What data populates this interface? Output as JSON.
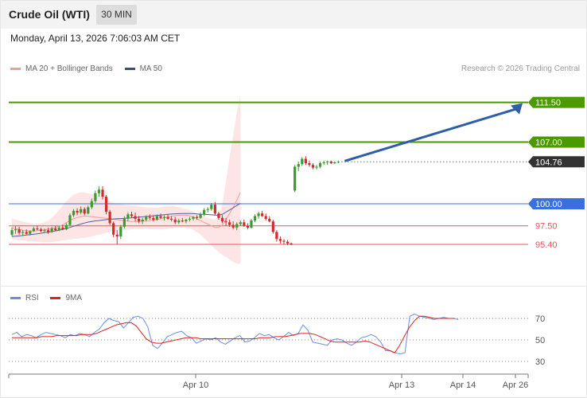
{
  "header": {
    "title": "Crude Oil (WTI)",
    "timeframe": "30 MIN"
  },
  "datetime": "Monday, April 13, 2026 7:06:03 AM CET",
  "legend": {
    "item1": "MA 20 + Bollinger Bands",
    "item2": "MA 50"
  },
  "credit": "Research © 2026 Trading Central",
  "colors": {
    "up": "#3b9b2f",
    "down": "#d22b2b",
    "resistance": "#4a9a00",
    "pivot": "#3b6fe0",
    "support": "#e05a5a",
    "ma20": "#f39a9a",
    "ma50": "#4a5fa0",
    "band": "#fde0e0",
    "arrow": "#2d5ea7",
    "rsi": "#6a8fe0",
    "rsi_ma": "#e02020"
  },
  "chart_data": [
    {
      "type": "candlestick",
      "indicators": [
        "MA 20 + Bollinger Bands",
        "MA 50"
      ],
      "price": {
        "last": 104.76,
        "approx_range": [
          94.5,
          112.5
        ]
      },
      "candles": [
        {
          "o": 96.5,
          "h": 97.3,
          "l": 96.3,
          "c": 97.0
        },
        {
          "o": 97.0,
          "h": 97.5,
          "l": 96.6,
          "c": 97.1
        },
        {
          "o": 97.1,
          "h": 97.4,
          "l": 96.5,
          "c": 96.7
        },
        {
          "o": 96.7,
          "h": 97.0,
          "l": 96.4,
          "c": 96.8
        },
        {
          "o": 96.8,
          "h": 97.1,
          "l": 96.5,
          "c": 96.6
        },
        {
          "o": 96.6,
          "h": 97.0,
          "l": 96.4,
          "c": 96.9
        },
        {
          "o": 96.9,
          "h": 97.4,
          "l": 96.8,
          "c": 97.2
        },
        {
          "o": 97.2,
          "h": 97.5,
          "l": 97.0,
          "c": 97.1
        },
        {
          "o": 97.1,
          "h": 97.3,
          "l": 96.8,
          "c": 96.9
        },
        {
          "o": 96.9,
          "h": 97.2,
          "l": 96.7,
          "c": 97.0
        },
        {
          "o": 97.0,
          "h": 97.3,
          "l": 96.6,
          "c": 96.8
        },
        {
          "o": 96.8,
          "h": 97.4,
          "l": 96.7,
          "c": 97.2
        },
        {
          "o": 97.2,
          "h": 97.5,
          "l": 96.9,
          "c": 97.0
        },
        {
          "o": 97.0,
          "h": 97.5,
          "l": 96.9,
          "c": 97.3
        },
        {
          "o": 97.3,
          "h": 97.6,
          "l": 97.0,
          "c": 97.1
        },
        {
          "o": 97.1,
          "h": 97.8,
          "l": 97.0,
          "c": 97.6
        },
        {
          "o": 97.6,
          "h": 98.9,
          "l": 97.5,
          "c": 98.7
        },
        {
          "o": 98.7,
          "h": 99.4,
          "l": 98.5,
          "c": 99.2
        },
        {
          "o": 99.2,
          "h": 99.5,
          "l": 98.7,
          "c": 99.0
        },
        {
          "o": 99.0,
          "h": 99.7,
          "l": 98.8,
          "c": 99.4
        },
        {
          "o": 99.4,
          "h": 99.6,
          "l": 98.7,
          "c": 98.9
        },
        {
          "o": 98.9,
          "h": 99.8,
          "l": 98.8,
          "c": 99.6
        },
        {
          "o": 99.6,
          "h": 100.6,
          "l": 99.4,
          "c": 100.3
        },
        {
          "o": 100.3,
          "h": 101.5,
          "l": 100.1,
          "c": 101.2
        },
        {
          "o": 101.2,
          "h": 102.0,
          "l": 100.8,
          "c": 101.6
        },
        {
          "o": 101.6,
          "h": 102.0,
          "l": 100.5,
          "c": 100.8
        },
        {
          "o": 100.8,
          "h": 101.0,
          "l": 98.8,
          "c": 99.1
        },
        {
          "o": 99.1,
          "h": 99.3,
          "l": 97.6,
          "c": 97.8
        },
        {
          "o": 97.8,
          "h": 98.0,
          "l": 96.2,
          "c": 96.5
        },
        {
          "o": 96.5,
          "h": 97.0,
          "l": 95.4,
          "c": 96.3
        },
        {
          "o": 96.3,
          "h": 97.6,
          "l": 96.0,
          "c": 97.4
        },
        {
          "o": 97.4,
          "h": 98.6,
          "l": 97.2,
          "c": 98.3
        },
        {
          "o": 98.3,
          "h": 99.0,
          "l": 98.0,
          "c": 98.8
        },
        {
          "o": 98.8,
          "h": 99.1,
          "l": 98.4,
          "c": 98.6
        },
        {
          "o": 98.6,
          "h": 99.0,
          "l": 98.0,
          "c": 98.3
        },
        {
          "o": 98.3,
          "h": 98.6,
          "l": 97.8,
          "c": 98.0
        },
        {
          "o": 98.0,
          "h": 98.4,
          "l": 97.7,
          "c": 98.2
        },
        {
          "o": 98.2,
          "h": 98.7,
          "l": 98.0,
          "c": 98.5
        },
        {
          "o": 98.5,
          "h": 98.8,
          "l": 98.2,
          "c": 98.4
        },
        {
          "o": 98.4,
          "h": 98.7,
          "l": 98.0,
          "c": 98.2
        },
        {
          "o": 98.2,
          "h": 98.8,
          "l": 98.1,
          "c": 98.6
        },
        {
          "o": 98.6,
          "h": 98.9,
          "l": 98.3,
          "c": 98.4
        },
        {
          "o": 98.4,
          "h": 98.7,
          "l": 98.1,
          "c": 98.5
        },
        {
          "o": 98.5,
          "h": 98.8,
          "l": 98.2,
          "c": 98.3
        },
        {
          "o": 98.3,
          "h": 98.6,
          "l": 98.0,
          "c": 98.2
        },
        {
          "o": 98.2,
          "h": 98.5,
          "l": 97.7,
          "c": 97.9
        },
        {
          "o": 97.9,
          "h": 98.3,
          "l": 97.7,
          "c": 98.1
        },
        {
          "o": 98.1,
          "h": 98.4,
          "l": 97.9,
          "c": 98.0
        },
        {
          "o": 98.0,
          "h": 98.3,
          "l": 97.8,
          "c": 98.2
        },
        {
          "o": 98.2,
          "h": 98.5,
          "l": 98.0,
          "c": 98.3
        },
        {
          "o": 98.3,
          "h": 98.6,
          "l": 98.1,
          "c": 98.5
        },
        {
          "o": 98.5,
          "h": 98.7,
          "l": 98.2,
          "c": 98.4
        },
        {
          "o": 98.4,
          "h": 99.0,
          "l": 98.3,
          "c": 98.8
        },
        {
          "o": 98.8,
          "h": 99.5,
          "l": 98.6,
          "c": 99.3
        },
        {
          "o": 99.3,
          "h": 99.6,
          "l": 99.0,
          "c": 99.4
        },
        {
          "o": 99.4,
          "h": 100.1,
          "l": 99.2,
          "c": 99.9
        },
        {
          "o": 99.9,
          "h": 100.2,
          "l": 98.7,
          "c": 98.9
        },
        {
          "o": 98.9,
          "h": 99.1,
          "l": 98.2,
          "c": 98.4
        },
        {
          "o": 98.4,
          "h": 98.7,
          "l": 97.8,
          "c": 98.0
        },
        {
          "o": 98.0,
          "h": 98.4,
          "l": 97.5,
          "c": 97.9
        },
        {
          "o": 97.9,
          "h": 98.2,
          "l": 97.4,
          "c": 97.6
        },
        {
          "o": 97.6,
          "h": 98.0,
          "l": 97.1,
          "c": 97.3
        },
        {
          "o": 97.3,
          "h": 97.9,
          "l": 97.0,
          "c": 97.7
        },
        {
          "o": 97.7,
          "h": 98.1,
          "l": 97.5,
          "c": 97.9
        },
        {
          "o": 97.9,
          "h": 98.2,
          "l": 97.4,
          "c": 97.5
        },
        {
          "o": 97.5,
          "h": 97.8,
          "l": 97.1,
          "c": 97.3
        },
        {
          "o": 97.3,
          "h": 98.3,
          "l": 97.2,
          "c": 98.1
        },
        {
          "o": 98.1,
          "h": 98.8,
          "l": 97.9,
          "c": 98.6
        },
        {
          "o": 98.6,
          "h": 99.1,
          "l": 98.3,
          "c": 98.9
        },
        {
          "o": 98.9,
          "h": 99.2,
          "l": 98.5,
          "c": 98.6
        },
        {
          "o": 98.6,
          "h": 98.9,
          "l": 98.1,
          "c": 98.3
        },
        {
          "o": 98.3,
          "h": 98.6,
          "l": 97.9,
          "c": 98.0
        },
        {
          "o": 98.0,
          "h": 98.2,
          "l": 96.6,
          "c": 96.8
        },
        {
          "o": 96.8,
          "h": 97.0,
          "l": 95.7,
          "c": 96.0
        },
        {
          "o": 96.0,
          "h": 96.3,
          "l": 95.5,
          "c": 95.8
        },
        {
          "o": 95.8,
          "h": 96.0,
          "l": 95.4,
          "c": 95.7
        },
        {
          "o": 95.7,
          "h": 95.9,
          "l": 95.3,
          "c": 95.5
        },
        {
          "o": 95.5,
          "h": 95.6,
          "l": 95.3,
          "c": 95.4
        },
        {
          "o": 101.5,
          "h": 104.4,
          "l": 101.3,
          "c": 104.2
        },
        {
          "o": 104.2,
          "h": 104.8,
          "l": 103.7,
          "c": 104.5
        },
        {
          "o": 104.5,
          "h": 105.3,
          "l": 104.3,
          "c": 105.1
        },
        {
          "o": 105.1,
          "h": 105.4,
          "l": 104.4,
          "c": 104.6
        },
        {
          "o": 104.6,
          "h": 104.9,
          "l": 104.2,
          "c": 104.4
        },
        {
          "o": 104.4,
          "h": 104.6,
          "l": 103.9,
          "c": 104.1
        },
        {
          "o": 104.1,
          "h": 104.4,
          "l": 103.9,
          "c": 104.2
        },
        {
          "o": 104.2,
          "h": 104.8,
          "l": 104.0,
          "c": 104.6
        },
        {
          "o": 104.6,
          "h": 104.9,
          "l": 104.4,
          "c": 104.7
        },
        {
          "o": 104.7,
          "h": 104.9,
          "l": 104.4,
          "c": 104.8
        },
        {
          "o": 104.8,
          "h": 104.9,
          "l": 104.5,
          "c": 104.6
        },
        {
          "o": 104.6,
          "h": 104.8,
          "l": 104.5,
          "c": 104.7
        },
        {
          "o": 104.7,
          "h": 104.9,
          "l": 104.6,
          "c": 104.76
        }
      ],
      "ma20": [
        97.3,
        97.2,
        97.1,
        97.0,
        96.95,
        96.9,
        96.9,
        96.95,
        97.0,
        97.05,
        97.1,
        97.2,
        97.3,
        97.45,
        97.6,
        97.85,
        98.1,
        98.3,
        98.45,
        98.55,
        98.6,
        98.6,
        98.55,
        98.5,
        98.45,
        98.4,
        98.35,
        98.3,
        98.25,
        98.2,
        98.15,
        98.1,
        98.05,
        98.0,
        98.0,
        98.0,
        98.05,
        98.05,
        98.1,
        98.15,
        98.2,
        98.3,
        98.4,
        98.5,
        98.6,
        98.65,
        98.7,
        98.7,
        98.7,
        98.65,
        98.5,
        98.3,
        98.1,
        97.9,
        97.7,
        97.5,
        97.3,
        97.3,
        97.6,
        98.2,
        98.9,
        99.6,
        100.4,
        101.3
      ],
      "ma50": [
        96.3,
        96.32,
        96.35,
        96.4,
        96.45,
        96.5,
        96.55,
        96.6,
        96.66,
        96.72,
        96.78,
        96.85,
        96.92,
        97.0,
        97.1,
        97.2,
        97.32,
        97.45,
        97.58,
        97.7,
        97.82,
        97.92,
        98.0,
        98.06,
        98.1,
        98.15,
        98.2,
        98.24,
        98.28,
        98.3,
        98.32,
        98.35,
        98.38,
        98.4,
        98.44,
        98.48,
        98.52,
        98.56,
        98.6,
        98.64,
        98.68,
        98.72,
        98.76,
        98.8,
        98.84,
        98.86,
        98.88,
        98.9,
        98.9,
        98.9,
        98.88,
        98.85,
        98.82,
        98.8,
        98.78,
        98.75,
        98.72,
        98.72,
        98.8,
        99.05,
        99.3,
        99.55,
        99.8,
        100.05
      ],
      "bb_upper": [
        98.3,
        98.2,
        98.1,
        98.0,
        97.9,
        97.8,
        97.7,
        97.7,
        97.8,
        97.9,
        98.1,
        98.4,
        98.8,
        99.3,
        99.8,
        100.3,
        100.7,
        101.0,
        101.2,
        101.3,
        101.3,
        101.2,
        101.1,
        101.0,
        100.9,
        100.8,
        100.6,
        100.3,
        100.1,
        100.0,
        99.95,
        99.9,
        99.85,
        99.8,
        99.75,
        99.7,
        99.65,
        99.6,
        99.58,
        99.56,
        99.55,
        99.6,
        99.7,
        99.75,
        99.75,
        99.7,
        99.6,
        99.5,
        99.4,
        99.3,
        99.1,
        98.9,
        98.7,
        98.5,
        98.4,
        98.3,
        98.2,
        98.5,
        100.0,
        102.5,
        105.2,
        107.8,
        110.3,
        112.5
      ],
      "bb_lower": [
        96.0,
        95.95,
        95.9,
        95.85,
        95.8,
        95.75,
        95.7,
        95.68,
        95.66,
        95.65,
        95.65,
        95.65,
        95.7,
        95.75,
        95.85,
        95.9,
        95.95,
        96.0,
        96.05,
        96.1,
        96.15,
        96.2,
        96.3,
        96.4,
        96.5,
        96.6,
        96.7,
        96.8,
        96.85,
        96.9,
        96.95,
        97.0,
        97.05,
        97.1,
        97.12,
        97.14,
        97.15,
        97.15,
        97.12,
        97.1,
        97.1,
        97.1,
        97.1,
        97.15,
        97.2,
        97.25,
        97.3,
        97.3,
        97.25,
        97.2,
        97.05,
        96.8,
        96.5,
        96.1,
        95.7,
        95.3,
        94.9,
        94.5,
        94.2,
        94.0,
        93.7,
        93.4,
        93.2,
        93.2
      ],
      "levels": [
        {
          "value": 111.5,
          "label": "111.50",
          "kind": "resistance",
          "boxed": true
        },
        {
          "value": 107.0,
          "label": "107.00",
          "kind": "resistance",
          "boxed": true
        },
        {
          "value": 104.76,
          "label": "104.76",
          "kind": "last",
          "boxed": true
        },
        {
          "value": 100.0,
          "label": "100.00",
          "kind": "pivot",
          "boxed": true
        },
        {
          "value": 97.5,
          "label": "97.50",
          "kind": "support",
          "boxed": false
        },
        {
          "value": 95.4,
          "label": "95.40",
          "kind": "support",
          "boxed": false
        }
      ],
      "projection": {
        "from": 104.76,
        "to": 111.5
      }
    },
    {
      "type": "line",
      "name": "RSI",
      "legend": [
        "RSI",
        "9MA"
      ],
      "yticks": [
        "70",
        "50",
        "30"
      ],
      "ytick_values": [
        70,
        50,
        30
      ],
      "rsi": [
        55,
        57,
        53,
        55,
        54,
        52,
        55,
        57,
        56,
        55,
        54,
        52,
        55,
        54,
        56,
        55,
        53,
        57,
        60,
        66,
        70,
        68,
        67,
        61,
        66,
        71,
        72,
        70,
        62,
        45,
        42,
        47,
        53,
        55,
        57,
        58,
        54,
        52,
        47,
        49,
        51,
        50,
        52,
        48,
        46,
        49,
        52,
        54,
        48,
        49,
        52,
        56,
        54,
        55,
        52,
        50,
        53,
        57,
        54,
        56,
        64,
        59,
        48,
        47,
        46,
        45,
        50,
        51,
        50,
        47,
        45,
        48,
        52,
        53,
        55,
        53,
        48,
        40,
        40,
        38,
        37,
        38,
        72,
        74,
        72,
        71,
        70,
        69,
        70,
        71,
        70,
        70,
        69
      ],
      "rsi_ma": [
        52,
        52,
        52,
        52,
        52,
        52,
        53,
        53,
        53,
        54,
        54,
        54,
        54,
        54,
        55,
        55,
        55,
        56,
        58,
        60,
        62,
        64,
        65,
        66,
        66,
        63,
        57,
        51,
        48,
        47,
        47,
        48,
        49,
        50,
        51,
        52,
        52,
        52,
        51,
        51,
        51,
        51,
        51,
        51,
        51,
        51,
        51,
        51,
        51,
        51,
        52,
        52,
        52,
        53,
        53,
        53,
        54,
        55,
        56,
        56,
        56,
        55,
        53,
        51,
        49,
        48,
        48,
        48,
        48,
        48,
        48,
        49,
        48,
        46,
        44,
        42,
        40,
        38,
        45,
        54,
        62,
        68,
        72,
        72,
        71,
        70,
        70,
        70,
        70,
        70
      ]
    }
  ],
  "xaxis": {
    "labels": [
      {
        "text": "Apr 10",
        "index": 38
      },
      {
        "text": "Apr 13",
        "index": 82
      },
      {
        "text": "Apr 14",
        "index": 95
      },
      {
        "text": "Apr 26",
        "index": 106
      }
    ]
  }
}
